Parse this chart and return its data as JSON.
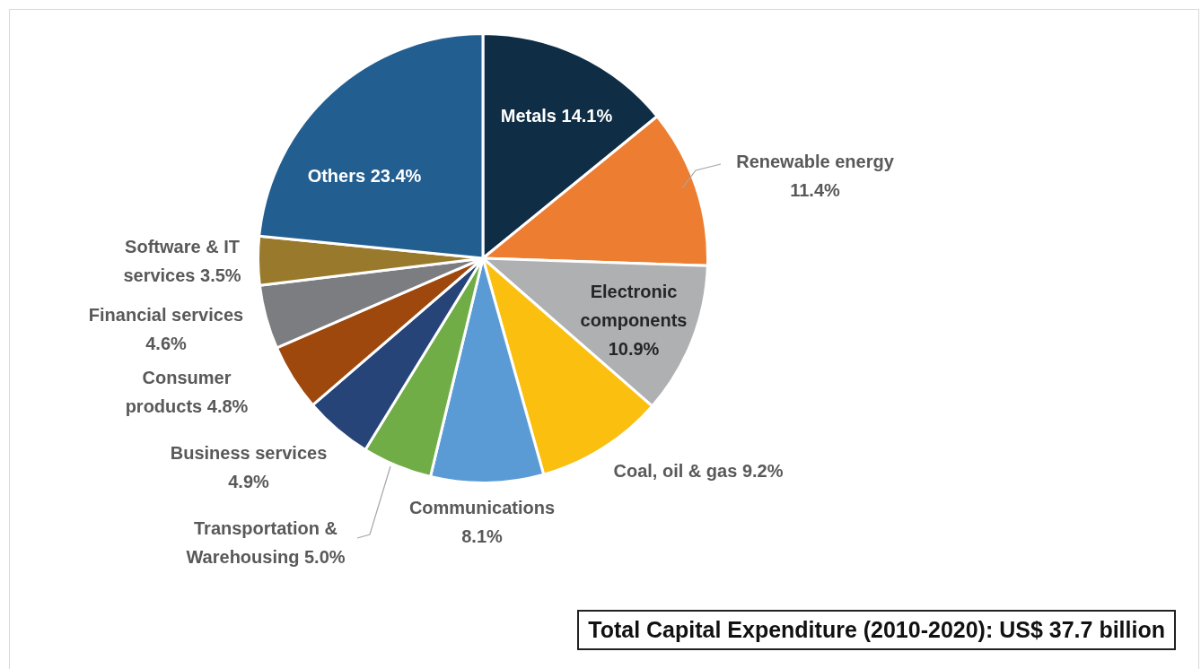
{
  "chart_data": {
    "type": "pie",
    "categories": [
      "Metals",
      "Renewable energy",
      "Electronic components",
      "Coal, oil & gas",
      "Communications",
      "Transportation & Warehousing",
      "Business services",
      "Consumer products",
      "Financial services",
      "Software & IT services",
      "Others"
    ],
    "values": [
      14.1,
      11.4,
      10.9,
      9.2,
      8.1,
      5.0,
      4.9,
      4.8,
      4.6,
      3.5,
      23.4
    ],
    "value_labels": [
      "14.1%",
      "11.4%",
      "10.9%",
      "9.2%",
      "8.1%",
      "5.0%",
      "4.9%",
      "4.8%",
      "4.6%",
      "3.5%",
      "23.4%"
    ],
    "colors": [
      "#0f2d45",
      "#ed7d31",
      "#afb0b2",
      "#fbbf10",
      "#5b9bd5",
      "#70ad47",
      "#264478",
      "#9e480e",
      "#7c7d80",
      "#997a2c",
      "#235e91"
    ],
    "legend": false,
    "annotations": [
      "Total Capital Expenditure (2010-2020): US$ 37.7 billion"
    ]
  }
}
